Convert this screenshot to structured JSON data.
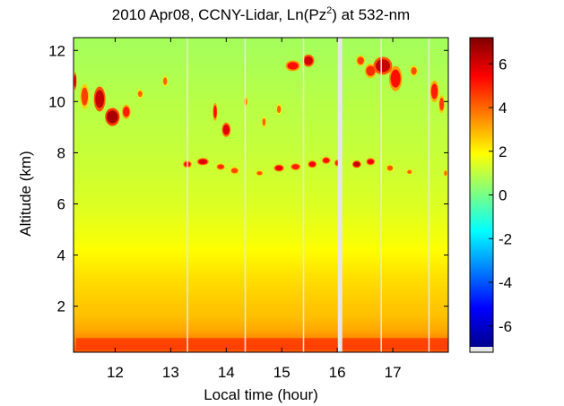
{
  "chart_data": {
    "type": "heatmap",
    "title": {
      "main": "2010 Apr08, CCNY-Lidar, Ln(Pz",
      "sup": "2",
      "tail": ") at 532-nm"
    },
    "xlabel": "Local time (hour)",
    "ylabel": "Altitude (km)",
    "xlim": [
      11.25,
      18.0
    ],
    "ylim": [
      0.2,
      12.5
    ],
    "xticks": [
      12,
      13,
      14,
      15,
      16,
      17
    ],
    "yticks": [
      2,
      4,
      6,
      8,
      10,
      12
    ],
    "colorbar": {
      "colormap": "jet",
      "range": [
        -7.2,
        7.2
      ],
      "ticks": [
        -6,
        -4,
        -2,
        0,
        2,
        4,
        6
      ],
      "no_data_color": "#e6e6e6"
    },
    "background_profile": [
      {
        "altitude_km": 0.3,
        "value": 4.2
      },
      {
        "altitude_km": 1.0,
        "value": 3.1
      },
      {
        "altitude_km": 1.6,
        "value": 2.7
      },
      {
        "altitude_km": 3.0,
        "value": 2.3
      },
      {
        "altitude_km": 4.5,
        "value": 1.7
      },
      {
        "altitude_km": 6.0,
        "value": 1.3
      },
      {
        "altitude_km": 8.0,
        "value": 1.0
      },
      {
        "altitude_km": 10.0,
        "value": 0.8
      },
      {
        "altitude_km": 12.5,
        "value": 0.5
      }
    ],
    "aerosol_layer": {
      "t_start": 11.3,
      "t_end": 18.0,
      "alt_bottom_km": 0.3,
      "alt_top_km": 0.75,
      "value": 4.6
    },
    "cloud_features": [
      {
        "t": 11.28,
        "altitude_km": 10.8,
        "dt": 0.04,
        "dz": 0.5,
        "value": 5.5
      },
      {
        "t": 11.45,
        "altitude_km": 10.2,
        "dt": 0.12,
        "dz": 0.7,
        "value": 4.5
      },
      {
        "t": 11.72,
        "altitude_km": 10.1,
        "dt": 0.16,
        "dz": 0.7,
        "value": 6.2
      },
      {
        "t": 11.95,
        "altitude_km": 9.4,
        "dt": 0.2,
        "dz": 0.5,
        "value": 6.6
      },
      {
        "t": 12.2,
        "altitude_km": 9.6,
        "dt": 0.12,
        "dz": 0.4,
        "value": 5.0
      },
      {
        "t": 12.45,
        "altitude_km": 10.3,
        "dt": 0.08,
        "dz": 0.25,
        "value": 4.0
      },
      {
        "t": 12.9,
        "altitude_km": 10.8,
        "dt": 0.07,
        "dz": 0.3,
        "value": 4.0
      },
      {
        "t": 13.8,
        "altitude_km": 9.6,
        "dt": 0.06,
        "dz": 0.5,
        "value": 5.2
      },
      {
        "t": 14.0,
        "altitude_km": 8.9,
        "dt": 0.12,
        "dz": 0.4,
        "value": 5.8
      },
      {
        "t": 14.35,
        "altitude_km": 10.0,
        "dt": 0.05,
        "dz": 0.3,
        "value": 4.2
      },
      {
        "t": 14.68,
        "altitude_km": 9.2,
        "dt": 0.06,
        "dz": 0.3,
        "value": 4.0
      },
      {
        "t": 14.95,
        "altitude_km": 9.7,
        "dt": 0.07,
        "dz": 0.3,
        "value": 4.0
      },
      {
        "t": 15.2,
        "altitude_km": 11.4,
        "dt": 0.2,
        "dz": 0.3,
        "value": 5.2
      },
      {
        "t": 15.48,
        "altitude_km": 11.6,
        "dt": 0.16,
        "dz": 0.35,
        "value": 6.0
      },
      {
        "t": 16.42,
        "altitude_km": 11.6,
        "dt": 0.12,
        "dz": 0.3,
        "value": 4.5
      },
      {
        "t": 16.6,
        "altitude_km": 11.2,
        "dt": 0.16,
        "dz": 0.4,
        "value": 4.8
      },
      {
        "t": 16.82,
        "altitude_km": 11.4,
        "dt": 0.26,
        "dz": 0.5,
        "value": 6.2
      },
      {
        "t": 17.05,
        "altitude_km": 10.9,
        "dt": 0.18,
        "dz": 0.7,
        "value": 5.2
      },
      {
        "t": 17.38,
        "altitude_km": 11.2,
        "dt": 0.1,
        "dz": 0.3,
        "value": 4.3
      },
      {
        "t": 17.75,
        "altitude_km": 10.4,
        "dt": 0.12,
        "dz": 0.6,
        "value": 5.0
      },
      {
        "t": 17.88,
        "altitude_km": 9.9,
        "dt": 0.08,
        "dz": 0.5,
        "value": 4.6
      },
      {
        "t": 13.3,
        "altitude_km": 7.55,
        "dt": 0.12,
        "dz": 0.2,
        "value": 5.2
      },
      {
        "t": 13.58,
        "altitude_km": 7.65,
        "dt": 0.16,
        "dz": 0.2,
        "value": 5.8
      },
      {
        "t": 13.9,
        "altitude_km": 7.45,
        "dt": 0.12,
        "dz": 0.18,
        "value": 4.8
      },
      {
        "t": 14.15,
        "altitude_km": 7.3,
        "dt": 0.12,
        "dz": 0.2,
        "value": 4.4
      },
      {
        "t": 14.6,
        "altitude_km": 7.2,
        "dt": 0.1,
        "dz": 0.15,
        "value": 4.2
      },
      {
        "t": 14.95,
        "altitude_km": 7.4,
        "dt": 0.14,
        "dz": 0.2,
        "value": 5.6
      },
      {
        "t": 15.25,
        "altitude_km": 7.45,
        "dt": 0.14,
        "dz": 0.2,
        "value": 5.0
      },
      {
        "t": 15.55,
        "altitude_km": 7.55,
        "dt": 0.12,
        "dz": 0.2,
        "value": 5.6
      },
      {
        "t": 15.8,
        "altitude_km": 7.7,
        "dt": 0.12,
        "dz": 0.2,
        "value": 5.2
      },
      {
        "t": 16.0,
        "altitude_km": 7.6,
        "dt": 0.08,
        "dz": 0.2,
        "value": 4.8
      },
      {
        "t": 16.35,
        "altitude_km": 7.55,
        "dt": 0.12,
        "dz": 0.2,
        "value": 6.2
      },
      {
        "t": 16.6,
        "altitude_km": 7.65,
        "dt": 0.12,
        "dz": 0.2,
        "value": 5.6
      },
      {
        "t": 16.95,
        "altitude_km": 7.4,
        "dt": 0.1,
        "dz": 0.2,
        "value": 4.2
      },
      {
        "t": 17.3,
        "altitude_km": 7.25,
        "dt": 0.08,
        "dz": 0.15,
        "value": 4.0
      },
      {
        "t": 17.95,
        "altitude_km": 7.2,
        "dt": 0.05,
        "dz": 0.2,
        "value": 4.0
      }
    ],
    "no_data_gaps": [
      {
        "t_start": 16.01,
        "t_end": 16.09
      },
      {
        "t_start": 13.29,
        "t_end": 13.3
      },
      {
        "t_start": 14.33,
        "t_end": 14.34
      },
      {
        "t_start": 15.38,
        "t_end": 15.39
      },
      {
        "t_start": 16.78,
        "t_end": 16.79
      },
      {
        "t_start": 17.64,
        "t_end": 17.65
      }
    ]
  }
}
